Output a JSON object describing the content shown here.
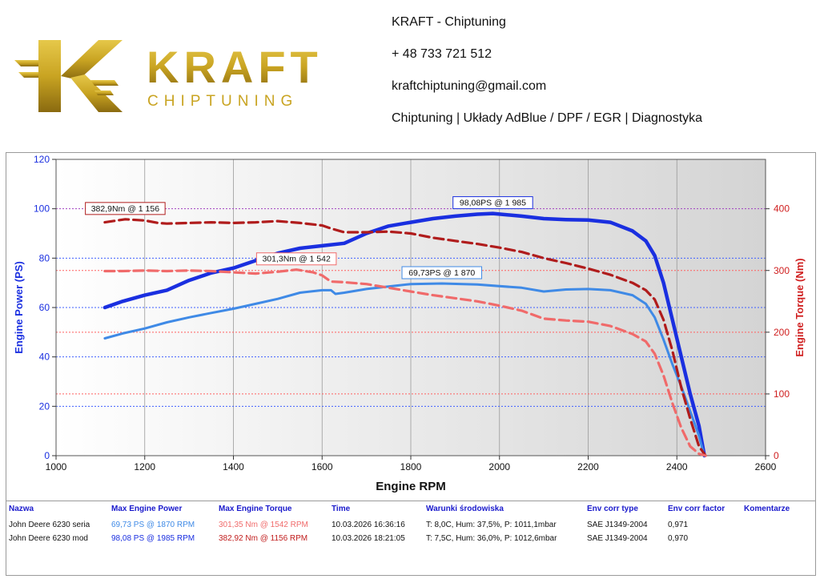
{
  "brand": {
    "logo_name": "KRAFT",
    "logo_sub": "CHIPTUNING",
    "colors": {
      "gold": "#c9a422",
      "gold_dark": "#8a6a10"
    }
  },
  "contact": {
    "title": "KRAFT - Chiptuning",
    "phone": "+ 48 733 721 512",
    "email": "kraftchiptuning@gmail.com",
    "services": "Chiptuning | Układy AdBlue / DPF / EGR | Diagnostyka"
  },
  "chart_data": {
    "type": "line",
    "xlabel": "Engine RPM",
    "ylabel_left": "Engine Power (PS)",
    "ylabel_right": "Engine Torque (Nm)",
    "xlim": [
      1000,
      2600
    ],
    "ylim_left": [
      0,
      120
    ],
    "ylim_right": [
      0,
      480
    ],
    "x_ticks": [
      1000,
      1200,
      1400,
      1600,
      1800,
      2000,
      2200,
      2400,
      2600
    ],
    "y_ticks_left": [
      0,
      20,
      40,
      60,
      80,
      100,
      120
    ],
    "y_ticks_right": [
      0,
      100,
      200,
      300,
      400
    ],
    "grid": true,
    "series": [
      {
        "name": "John Deere 6230 mod",
        "axis": "left",
        "color": "#1a2fe0",
        "dash": "solid",
        "width": 4.5,
        "x": [
          1110,
          1150,
          1200,
          1250,
          1300,
          1350,
          1400,
          1450,
          1500,
          1550,
          1600,
          1650,
          1700,
          1750,
          1800,
          1850,
          1900,
          1950,
          1985,
          2050,
          2100,
          2150,
          2200,
          2250,
          2300,
          2330,
          2350,
          2370,
          2390,
          2410,
          2430,
          2450,
          2462
        ],
        "y": [
          60,
          62.5,
          65,
          67,
          71,
          74,
          76,
          79,
          82,
          84,
          85,
          86,
          90,
          93,
          94.5,
          96,
          97,
          97.8,
          98.08,
          97,
          96,
          95.6,
          95.4,
          94.5,
          91,
          87,
          81,
          70,
          55,
          40,
          25,
          12,
          0
        ]
      },
      {
        "name": "John Deere 6230 seria",
        "axis": "left",
        "color": "#3f8ae6",
        "dash": "solid",
        "width": 3,
        "x": [
          1110,
          1150,
          1200,
          1250,
          1300,
          1350,
          1400,
          1450,
          1500,
          1550,
          1600,
          1620,
          1630,
          1650,
          1700,
          1750,
          1800,
          1870,
          1950,
          2050,
          2100,
          2150,
          2200,
          2250,
          2300,
          2330,
          2350,
          2370,
          2390,
          2410,
          2430,
          2450,
          2462
        ],
        "y": [
          47.5,
          49.5,
          51.5,
          54,
          56,
          57.8,
          59.5,
          61.5,
          63.5,
          66,
          67,
          67,
          65.5,
          66,
          67.5,
          68.5,
          69.5,
          69.73,
          69.3,
          68,
          66.5,
          67.3,
          67.5,
          67,
          65,
          61.5,
          56,
          47,
          37,
          28,
          18,
          8,
          0
        ]
      },
      {
        "name": "John Deere 6230 mod",
        "axis": "right",
        "color": "#b01c1c",
        "dash": "12 6",
        "width": 3.2,
        "x": [
          1110,
          1156,
          1200,
          1230,
          1250,
          1300,
          1350,
          1400,
          1450,
          1500,
          1550,
          1600,
          1620,
          1650,
          1700,
          1750,
          1800,
          1850,
          1900,
          1950,
          2000,
          2050,
          2100,
          2150,
          2200,
          2250,
          2300,
          2330,
          2350,
          2370,
          2390,
          2410,
          2430,
          2450,
          2465
        ],
        "y": [
          378,
          382.9,
          381,
          377,
          376,
          377,
          378,
          377,
          378,
          380,
          377,
          373,
          368,
          362,
          362,
          363,
          360,
          353,
          348,
          343,
          337,
          330,
          320,
          312,
          303,
          293,
          280,
          268,
          253,
          220,
          170,
          110,
          60,
          15,
          0
        ]
      },
      {
        "name": "John Deere 6230 seria",
        "axis": "right",
        "color": "#f06a6a",
        "dash": "12 6",
        "width": 3.2,
        "x": [
          1110,
          1150,
          1200,
          1250,
          1300,
          1350,
          1400,
          1450,
          1500,
          1542,
          1580,
          1600,
          1620,
          1650,
          1700,
          1750,
          1800,
          1850,
          1900,
          1950,
          2000,
          2050,
          2100,
          2150,
          2200,
          2250,
          2300,
          2330,
          2350,
          2370,
          2390,
          2410,
          2430,
          2450,
          2465
        ],
        "y": [
          299,
          299,
          300,
          299,
          300,
          299,
          297,
          295,
          298,
          301.3,
          297,
          292,
          282,
          281,
          278,
          272,
          266,
          260,
          255,
          250,
          243,
          235,
          222,
          219,
          217,
          210,
          197,
          185,
          165,
          130,
          85,
          45,
          15,
          3,
          0
        ]
      }
    ],
    "annotations": [
      {
        "text": "98,08PS @ 1 985",
        "x": 1985,
        "y": 98.08,
        "axis": "left",
        "color": "#1a2fe0"
      },
      {
        "text": "69,73PS @ 1 870",
        "x": 1870,
        "y": 69.73,
        "axis": "left",
        "color": "#3f8ae6"
      },
      {
        "text": "382,9Nm @ 1 156",
        "x": 1156,
        "y": 382.9,
        "axis": "right",
        "color": "#b01c1c"
      },
      {
        "text": "301,3Nm @ 1 542",
        "x": 1542,
        "y": 301.3,
        "axis": "right",
        "color": "#f06a6a"
      }
    ],
    "reference_lines": [
      {
        "axis": "left",
        "value": 100,
        "color": "#a040c0"
      },
      {
        "axis": "left",
        "value": 80,
        "color": "#4060ff"
      },
      {
        "axis": "left",
        "value": 60,
        "color": "#4060ff"
      },
      {
        "axis": "left",
        "value": 40,
        "color": "#4060ff"
      },
      {
        "axis": "left",
        "value": 20,
        "color": "#4060ff"
      },
      {
        "axis": "right",
        "value": 300,
        "color": "#ff6060"
      },
      {
        "axis": "right",
        "value": 200,
        "color": "#ff6060"
      },
      {
        "axis": "right",
        "value": 100,
        "color": "#ff6060"
      }
    ]
  },
  "table": {
    "headers": [
      "Nazwa",
      "Max Engine Power",
      "Max Engine Torque",
      "Time",
      "Warunki środowiska",
      "Env corr type",
      "Env corr factor",
      "Komentarze"
    ],
    "rows": [
      {
        "name": "John Deere 6230 seria",
        "power": "69,73 PS @ 1870 RPM",
        "torque": "301,35 Nm @ 1542 RPM",
        "time": "10.03.2026 16:36:16",
        "conditions": "T: 8,0C, Hum: 37,5%, P: 1011,1mbar",
        "corr_type": "SAE J1349-2004",
        "corr_factor": "0,971",
        "comment": "",
        "power_color": "#3f8ae6",
        "torque_color": "#f06a6a"
      },
      {
        "name": "John Deere 6230 mod",
        "power": "98,08 PS @ 1985 RPM",
        "torque": "382,92 Nm @ 1156 RPM",
        "time": "10.03.2026 18:21:05",
        "conditions": "T: 7,5C, Hum: 36,0%, P: 1012,6mbar",
        "corr_type": "SAE J1349-2004",
        "corr_factor": "0,970",
        "comment": "",
        "power_color": "#1a2fe0",
        "torque_color": "#c01c1c"
      }
    ]
  }
}
